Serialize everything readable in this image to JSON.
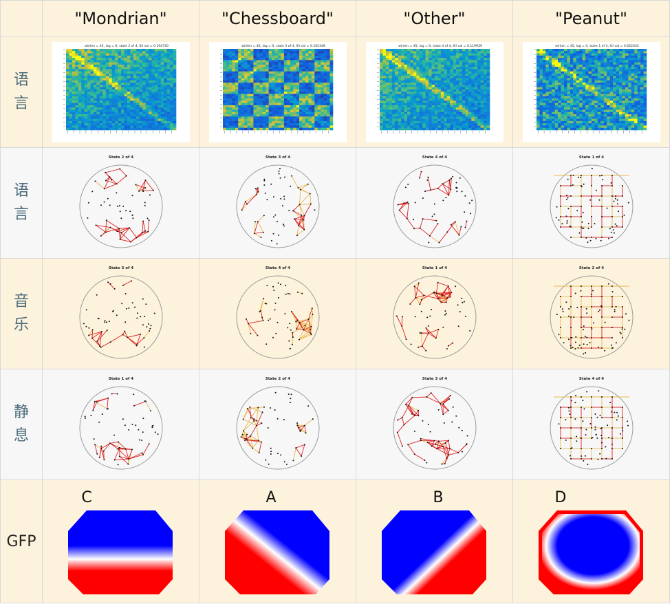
{
  "headers": {
    "corner": "",
    "mondrian": "\"Mondrian\"",
    "chessboard": "\"Chessboard\"",
    "other": "\"Other\"",
    "peanut": "\"Peanut\""
  },
  "rows": {
    "language_a": {
      "c1": "语",
      "c2": "言"
    },
    "language_b": {
      "c1": "语",
      "c2": "言"
    },
    "music": {
      "c1": "音",
      "c2": "乐"
    },
    "rest": {
      "c1": "静",
      "c2": "息"
    },
    "gfp": "GFP"
  },
  "matrix_titles": [
    "winlen = 45, lag = 0, state 2 of 4, Sil val = 0.194730",
    "winlen = 45, lag = 0, state 3 of 4, Sil val = 0.105348",
    "winlen = 45, lag = 0, state 4 of 4, Sil val = 0.119939",
    "winlen = 45, lag = 0, state 1 of 4, Sil val = 0.022432"
  ],
  "network_titles": {
    "language": [
      "State 2 of 4",
      "State 3 of 4",
      "State 4 of 4",
      "State 1 of 4"
    ],
    "music": [
      "State 3 of 4",
      "State 4 of 4",
      "State 1 of 4",
      "State 2 of 4"
    ],
    "rest": [
      "State 1 of 4",
      "State 2 of 4",
      "State 3 of 4",
      "State 4 of 4"
    ]
  },
  "gfp_letters": [
    "C",
    "A",
    "B",
    "D"
  ],
  "colors": {
    "header_bg": "#fdf3dc",
    "alt_bg": "#f7f7f8",
    "edge_strong": "#e02020",
    "edge_weak": "#e8b84a",
    "map_pos": "#ff0000",
    "map_neg": "#0000ff"
  }
}
